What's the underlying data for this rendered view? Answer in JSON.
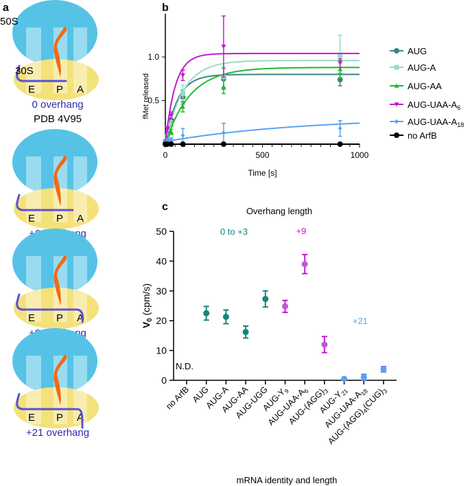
{
  "panel_a": {
    "label": "a",
    "large_subunit": "50S",
    "small_subunit": "30S",
    "sites": [
      "E",
      "P",
      "A"
    ],
    "diagrams": [
      {
        "caption": "0 overhang",
        "subcaption": "PDB 4V95"
      },
      {
        "caption": "+2 overhang"
      },
      {
        "caption": "+9 overhang"
      },
      {
        "caption": "+21 overhang"
      }
    ],
    "colors": {
      "large": "#56c3e6",
      "small": "#f4e17a",
      "trna": "#f06a16",
      "mrna": "#5a4fd8",
      "caption": "#2f2aa8"
    }
  },
  "chart_data": [
    {
      "panel": "b",
      "type": "line",
      "title": "",
      "xlabel": "Time [s]",
      "ylabel": "fMet released",
      "xlim": [
        0,
        1000
      ],
      "ylim": [
        0,
        1.5
      ],
      "xticks": [
        "0",
        "500",
        "1000"
      ],
      "yticks": [
        "0.5",
        "1.0"
      ],
      "legend_position": "right",
      "x": [
        0,
        10,
        30,
        90,
        300,
        900
      ],
      "series": [
        {
          "name": "AUG",
          "marker": "circle",
          "color": "#3a8580",
          "values": [
            0.02,
            0.1,
            0.28,
            0.54,
            0.75,
            0.74
          ],
          "errors": [
            0.02,
            0.03,
            0.05,
            0.08,
            0.12,
            0.07
          ],
          "fit": {
            "plateau": 0.8,
            "rate": 0.016
          }
        },
        {
          "name": "AUG-A",
          "sub": "",
          "marker": "square",
          "color": "#96dcc4",
          "values": [
            0.02,
            0.08,
            0.22,
            0.58,
            0.77,
            1.02
          ],
          "errors": [
            0.02,
            0.03,
            0.05,
            0.1,
            0.12,
            0.23
          ],
          "fit": {
            "plateau": 0.96,
            "rate": 0.011
          }
        },
        {
          "name": "AUG-AA",
          "sub": "",
          "marker": "triangle-up",
          "color": "#1fba2a",
          "values": [
            0.02,
            0.06,
            0.14,
            0.43,
            0.66,
            0.86
          ],
          "errors": [
            0.02,
            0.03,
            0.03,
            0.06,
            0.08,
            0.1
          ],
          "fit": {
            "plateau": 0.88,
            "rate": 0.008
          }
        },
        {
          "name": "AUG-UAA-A",
          "sub": "6",
          "marker": "triangle-down",
          "color": "#c21ad0",
          "values": [
            0.03,
            0.17,
            0.33,
            0.79,
            1.12,
            0.93
          ],
          "errors": [
            0.02,
            0.03,
            0.04,
            0.06,
            0.35,
            0.05
          ],
          "fit": {
            "plateau": 1.04,
            "rate": 0.02
          }
        },
        {
          "name": "AUG-UAA-A",
          "sub": "18",
          "marker": "diamond",
          "color": "#5aa2f2",
          "values": [
            0.02,
            0.04,
            0.05,
            0.1,
            0.13,
            0.18
          ],
          "errors": [
            0.02,
            0.02,
            0.02,
            0.08,
            0.11,
            0.09
          ],
          "fit": {
            "plateau": 0.28,
            "rate": 0.0014,
            "offset": 0.03
          }
        },
        {
          "name": "no ArfB",
          "sub": "",
          "marker": "circle",
          "color": "#000000",
          "values": [
            0,
            0,
            0,
            0,
            0,
            0
          ],
          "errors": [
            0,
            0,
            0,
            0,
            0,
            0
          ],
          "fit": {
            "plateau": 0,
            "rate": 0
          }
        }
      ]
    },
    {
      "panel": "c",
      "type": "scatter",
      "title": "Overhang length",
      "xlabel": "mRNA identity and length",
      "ylabel": "V",
      "ylabel_sub": "0",
      "ylabel_unit": " (cpm/s)",
      "ylim": [
        0,
        50
      ],
      "yticks": [
        "0",
        "10",
        "20",
        "30",
        "40",
        "50"
      ],
      "categories": [
        {
          "name": "no ArfB",
          "sub": "",
          "tail": ""
        },
        {
          "name": "AUG",
          "sub": "",
          "tail": ""
        },
        {
          "name": "AUG-A",
          "sub": "",
          "tail": ""
        },
        {
          "name": "AUG-AA",
          "sub": "",
          "tail": ""
        },
        {
          "name": "AUG-UGG",
          "sub": "",
          "tail": ""
        },
        {
          "name": "AUG-Y",
          "sub": "9",
          "tail": ""
        },
        {
          "name": "AUG-UAA-A",
          "sub": "6",
          "tail": ""
        },
        {
          "name": "AUG-(AGG)",
          "sub": "3",
          "tail": ""
        },
        {
          "name": "AUG-Y",
          "sub": "21",
          "tail": ""
        },
        {
          "name": "AUG-UAA-A",
          "sub": "18",
          "tail": ""
        },
        {
          "name": "AUG-(AGG)",
          "sub": "4",
          "tail": "(CUG)",
          "sub2": "3"
        }
      ],
      "values": [
        null,
        22.5,
        21.3,
        16.2,
        27.3,
        24.8,
        39.0,
        12.0,
        0.5,
        1.0,
        3.7
      ],
      "errors": [
        null,
        2.3,
        2.3,
        2.0,
        2.7,
        2.0,
        3.2,
        2.7,
        0.2,
        1.0,
        0.9
      ],
      "groups": [
        0,
        1,
        1,
        1,
        1,
        2,
        2,
        2,
        3,
        3,
        3
      ],
      "group_colors": {
        "1": {
          "dot": "#17857d",
          "bar": "#17857d"
        },
        "2": {
          "dot": "#b65ed2",
          "bar": "#c21ad0"
        },
        "3": {
          "dot": "#5aa2f2",
          "bar": "#4c7ee8"
        }
      },
      "annotations": {
        "nd": "N.D.",
        "group1": "0 to +3",
        "group2": "+9",
        "group3": "+21"
      },
      "panel_label": "c"
    }
  ],
  "panel_b_label": "b"
}
